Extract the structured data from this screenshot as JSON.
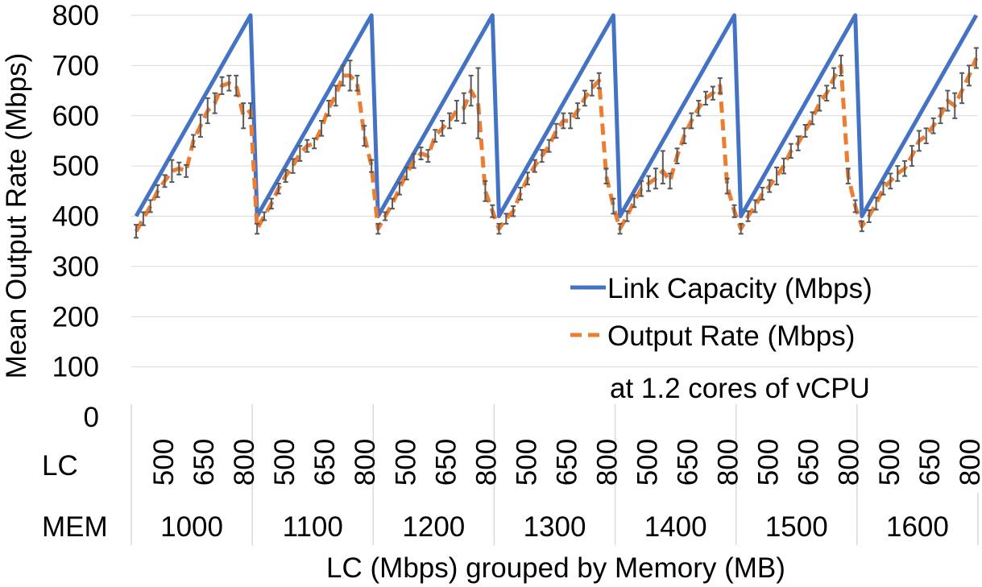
{
  "chart_data": {
    "type": "line",
    "title": "",
    "ylabel": "Mean Output Rate (Mbps)",
    "xlabel": "LC (Mbps) grouped by Memory (MB)",
    "ylim": [
      0,
      800
    ],
    "yticks": [
      0,
      100,
      200,
      300,
      400,
      500,
      600,
      700,
      800
    ],
    "grid": true,
    "legend_position": "right",
    "annotation": "at 1.2 cores of vCPU",
    "row_labels": {
      "lc": "LC",
      "mem": "MEM"
    },
    "groups": [
      "1000",
      "1100",
      "1200",
      "1300",
      "1400",
      "1500",
      "1600"
    ],
    "lc_tick_labels": [
      "500",
      "650",
      "800"
    ],
    "lc_values_per_group": [
      400,
      425,
      450,
      475,
      500,
      525,
      550,
      575,
      600,
      625,
      650,
      675,
      700,
      725,
      750,
      775,
      800
    ],
    "series": [
      {
        "name": "Link Capacity (Mbps)",
        "color": "#4472C4",
        "dash": "solid",
        "values": [
          400,
          425,
          450,
          475,
          500,
          525,
          550,
          575,
          600,
          625,
          650,
          675,
          700,
          725,
          750,
          775,
          800,
          400,
          425,
          450,
          475,
          500,
          525,
          550,
          575,
          600,
          625,
          650,
          675,
          700,
          725,
          750,
          775,
          800,
          400,
          425,
          450,
          475,
          500,
          525,
          550,
          575,
          600,
          625,
          650,
          675,
          700,
          725,
          750,
          775,
          800,
          400,
          425,
          450,
          475,
          500,
          525,
          550,
          575,
          600,
          625,
          650,
          675,
          700,
          725,
          750,
          775,
          800,
          400,
          425,
          450,
          475,
          500,
          525,
          550,
          575,
          600,
          625,
          650,
          675,
          700,
          725,
          750,
          775,
          800,
          400,
          425,
          450,
          475,
          500,
          525,
          550,
          575,
          600,
          625,
          650,
          675,
          700,
          725,
          750,
          775,
          800,
          400,
          425,
          450,
          475,
          500,
          525,
          550,
          575,
          600,
          625,
          650,
          675,
          700,
          725,
          750,
          775,
          800
        ]
      },
      {
        "name": "Output Rate (Mbps)",
        "color": "#ED7D31",
        "dash": "dashed",
        "values": [
          370,
          395,
          420,
          450,
          470,
          490,
          495,
          490,
          550,
          580,
          610,
          625,
          660,
          665,
          660,
          600,
          610,
          375,
          400,
          425,
          455,
          480,
          500,
          525,
          540,
          545,
          575,
          615,
          640,
          680,
          680,
          665,
          560,
          500,
          375,
          400,
          425,
          455,
          485,
          510,
          525,
          520,
          560,
          575,
          590,
          610,
          615,
          650,
          625,
          450,
          410,
          375,
          395,
          410,
          445,
          475,
          500,
          520,
          540,
          570,
          590,
          590,
          610,
          635,
          655,
          670,
          480,
          420,
          375,
          400,
          430,
          455,
          465,
          475,
          490,
          470,
          520,
          560,
          590,
          615,
          635,
          645,
          660,
          460,
          410,
          375,
          400,
          420,
          445,
          460,
          480,
          500,
          530,
          545,
          570,
          595,
          625,
          645,
          675,
          700,
          480,
          420,
          380,
          400,
          425,
          455,
          470,
          485,
          495,
          520,
          550,
          560,
          580,
          600,
          630,
          620,
          650,
          680,
          715
        ],
        "error_bars": [
          [
            357,
            383
          ],
          [
            382,
            408
          ],
          [
            408,
            432
          ],
          [
            438,
            462
          ],
          [
            458,
            482
          ],
          [
            468,
            512
          ],
          [
            483,
            507
          ],
          [
            478,
            502
          ],
          [
            538,
            562
          ],
          [
            558,
            602
          ],
          [
            585,
            635
          ],
          [
            605,
            645
          ],
          [
            643,
            677
          ],
          [
            650,
            680
          ],
          [
            640,
            680
          ],
          [
            575,
            625
          ],
          [
            595,
            625
          ],
          [
            365,
            385
          ],
          [
            392,
            408
          ],
          [
            415,
            435
          ],
          [
            445,
            465
          ],
          [
            468,
            492
          ],
          [
            486,
            514
          ],
          [
            510,
            540
          ],
          [
            528,
            552
          ],
          [
            535,
            555
          ],
          [
            560,
            590
          ],
          [
            600,
            630
          ],
          [
            620,
            660
          ],
          [
            660,
            700
          ],
          [
            650,
            710
          ],
          [
            650,
            680
          ],
          [
            540,
            580
          ],
          [
            488,
            512
          ],
          [
            365,
            385
          ],
          [
            392,
            408
          ],
          [
            415,
            435
          ],
          [
            443,
            467
          ],
          [
            473,
            497
          ],
          [
            496,
            524
          ],
          [
            513,
            537
          ],
          [
            508,
            532
          ],
          [
            548,
            572
          ],
          [
            560,
            590
          ],
          [
            575,
            605
          ],
          [
            590,
            630
          ],
          [
            585,
            645
          ],
          [
            620,
            680
          ],
          [
            555,
            695
          ],
          [
            430,
            470
          ],
          [
            398,
            422
          ],
          [
            365,
            385
          ],
          [
            385,
            405
          ],
          [
            400,
            420
          ],
          [
            433,
            457
          ],
          [
            463,
            487
          ],
          [
            488,
            512
          ],
          [
            508,
            532
          ],
          [
            528,
            552
          ],
          [
            556,
            584
          ],
          [
            575,
            605
          ],
          [
            575,
            605
          ],
          [
            595,
            625
          ],
          [
            620,
            650
          ],
          [
            640,
            670
          ],
          [
            655,
            685
          ],
          [
            465,
            495
          ],
          [
            405,
            435
          ],
          [
            365,
            385
          ],
          [
            390,
            410
          ],
          [
            418,
            442
          ],
          [
            440,
            470
          ],
          [
            450,
            480
          ],
          [
            455,
            495
          ],
          [
            465,
            530
          ],
          [
            455,
            485
          ],
          [
            505,
            535
          ],
          [
            545,
            575
          ],
          [
            575,
            605
          ],
          [
            600,
            630
          ],
          [
            622,
            648
          ],
          [
            632,
            658
          ],
          [
            645,
            675
          ],
          [
            445,
            475
          ],
          [
            398,
            422
          ],
          [
            365,
            385
          ],
          [
            390,
            410
          ],
          [
            408,
            432
          ],
          [
            433,
            457
          ],
          [
            448,
            472
          ],
          [
            463,
            497
          ],
          [
            485,
            515
          ],
          [
            516,
            544
          ],
          [
            531,
            559
          ],
          [
            558,
            582
          ],
          [
            583,
            607
          ],
          [
            610,
            640
          ],
          [
            630,
            660
          ],
          [
            655,
            695
          ],
          [
            680,
            720
          ],
          [
            465,
            495
          ],
          [
            408,
            432
          ],
          [
            370,
            390
          ],
          [
            388,
            412
          ],
          [
            413,
            437
          ],
          [
            443,
            467
          ],
          [
            455,
            485
          ],
          [
            470,
            500
          ],
          [
            480,
            510
          ],
          [
            500,
            540
          ],
          [
            530,
            570
          ],
          [
            545,
            575
          ],
          [
            565,
            595
          ],
          [
            585,
            615
          ],
          [
            610,
            650
          ],
          [
            595,
            645
          ],
          [
            625,
            685
          ],
          [
            660,
            700
          ],
          [
            695,
            735
          ]
        ]
      }
    ]
  }
}
